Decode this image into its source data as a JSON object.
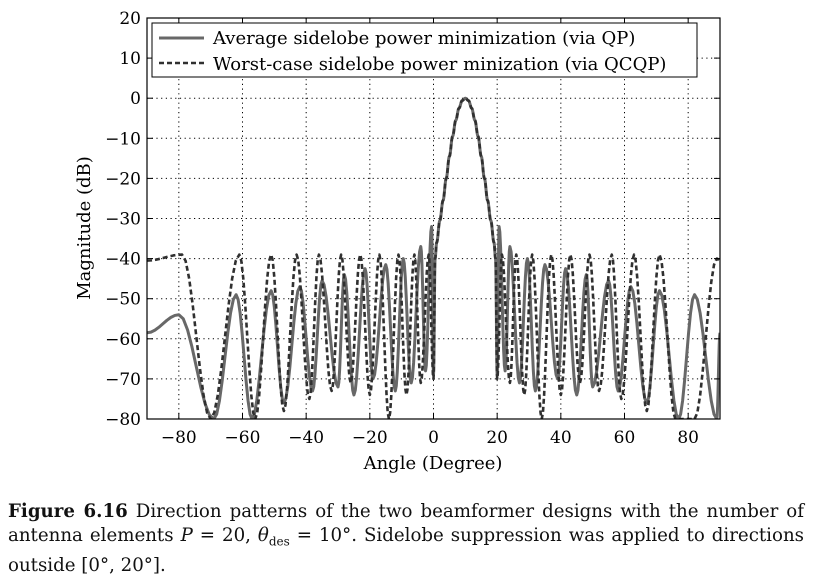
{
  "chart_data": {
    "type": "line",
    "title": "",
    "xlabel": "Angle (Degree)",
    "ylabel": "Magnitude (dB)",
    "xlim": [
      -90,
      90
    ],
    "ylim": [
      -80,
      20
    ],
    "xticks": [
      -80,
      -60,
      -40,
      -20,
      0,
      20,
      40,
      60,
      80
    ],
    "yticks": [
      20,
      10,
      0,
      -10,
      -20,
      -30,
      -40,
      -50,
      -60,
      -70,
      -80
    ],
    "xtick_labels": [
      "−80",
      "−60",
      "−40",
      "−20",
      "0",
      "20",
      "40",
      "60",
      "80"
    ],
    "ytick_labels": [
      "20",
      "10",
      "0",
      "−10",
      "−20",
      "−30",
      "−40",
      "−50",
      "−60",
      "−70",
      "−80"
    ],
    "grid": true,
    "legend_position": "top-right",
    "main_lobe": {
      "x": [
        0.5,
        1,
        2,
        3,
        4,
        5,
        6,
        7,
        8,
        9,
        10,
        11,
        12,
        13,
        14,
        15,
        16,
        17,
        18,
        19,
        19.5
      ],
      "y": [
        -40,
        -36,
        -30.5,
        -25.5,
        -20,
        -14.5,
        -9.5,
        -5.5,
        -2.5,
        -0.6,
        0,
        -0.6,
        -2.5,
        -5.5,
        -9.5,
        -14.5,
        -20,
        -25.5,
        -30.5,
        -36,
        -40
      ]
    },
    "series": [
      {
        "name": "Average sidelobe power minimization (via QP)",
        "color": "#686868",
        "dash": "solid",
        "y_at_minus90": -58.5,
        "y_at_plus90": -58.5,
        "sidelobes_left": [
          {
            "x": -80,
            "y": -54
          },
          {
            "x": -62,
            "y": -49
          },
          {
            "x": -51,
            "y": -48
          },
          {
            "x": -42,
            "y": -47
          },
          {
            "x": -35,
            "y": -45.5
          },
          {
            "x": -28,
            "y": -44
          },
          {
            "x": -21.5,
            "y": -42.5
          },
          {
            "x": -15,
            "y": -41.5
          },
          {
            "x": -9.5,
            "y": -40
          },
          {
            "x": -4,
            "y": -37
          },
          {
            "x": -0.6,
            "y": -32
          }
        ],
        "nulls_left": [
          {
            "x": -69,
            "y": -80
          },
          {
            "x": -57,
            "y": -80
          },
          {
            "x": -47,
            "y": -76
          },
          {
            "x": -38,
            "y": -73
          },
          {
            "x": -30,
            "y": -72
          },
          {
            "x": -25,
            "y": -74
          },
          {
            "x": -19,
            "y": -70
          },
          {
            "x": -12,
            "y": -73
          },
          {
            "x": -7,
            "y": -71
          },
          {
            "x": -2.5,
            "y": -68
          },
          {
            "x": 0,
            "y": -69
          }
        ],
        "sidelobes_right": [
          {
            "x": 20.6,
            "y": -32
          },
          {
            "x": 24,
            "y": -37
          },
          {
            "x": 29.5,
            "y": -40
          },
          {
            "x": 35,
            "y": -41.5
          },
          {
            "x": 41.5,
            "y": -42.5
          },
          {
            "x": 48,
            "y": -44
          },
          {
            "x": 55,
            "y": -45.5
          },
          {
            "x": 62,
            "y": -47
          },
          {
            "x": 71,
            "y": -48
          },
          {
            "x": 82,
            "y": -49
          }
        ],
        "nulls_right": [
          {
            "x": 20,
            "y": -69
          },
          {
            "x": 22.5,
            "y": -68
          },
          {
            "x": 27,
            "y": -71
          },
          {
            "x": 32,
            "y": -73
          },
          {
            "x": 39,
            "y": -70
          },
          {
            "x": 45,
            "y": -74
          },
          {
            "x": 50,
            "y": -72
          },
          {
            "x": 58,
            "y": -73
          },
          {
            "x": 67,
            "y": -76
          },
          {
            "x": 77,
            "y": -80
          },
          {
            "x": 89,
            "y": -80
          }
        ]
      },
      {
        "name": "Worst-case sidelobe power minization (via QCQP)",
        "color": "#303030",
        "dash": "dashed",
        "y_at_minus90": -40.5,
        "y_at_plus90": -40.5,
        "sidelobes_left": [
          {
            "x": -79,
            "y": -39
          },
          {
            "x": -61,
            "y": -39
          },
          {
            "x": -51,
            "y": -39
          },
          {
            "x": -43,
            "y": -39
          },
          {
            "x": -36,
            "y": -39
          },
          {
            "x": -29,
            "y": -39
          },
          {
            "x": -23,
            "y": -39
          },
          {
            "x": -17,
            "y": -39
          },
          {
            "x": -11,
            "y": -39
          },
          {
            "x": -6,
            "y": -39
          },
          {
            "x": -1.5,
            "y": -39
          }
        ],
        "nulls_left": [
          {
            "x": -70,
            "y": -80
          },
          {
            "x": -56,
            "y": -80
          },
          {
            "x": -47,
            "y": -78
          },
          {
            "x": -39,
            "y": -75
          },
          {
            "x": -32,
            "y": -73
          },
          {
            "x": -26,
            "y": -71
          },
          {
            "x": -20,
            "y": -74
          },
          {
            "x": -14,
            "y": -80
          },
          {
            "x": -8.5,
            "y": -74
          },
          {
            "x": -4,
            "y": -71
          },
          {
            "x": 0,
            "y": -70
          }
        ],
        "sidelobes_right": [
          {
            "x": 21.5,
            "y": -39
          },
          {
            "x": 26,
            "y": -39
          },
          {
            "x": 31,
            "y": -39
          },
          {
            "x": 37,
            "y": -39
          },
          {
            "x": 43,
            "y": -39
          },
          {
            "x": 49,
            "y": -39
          },
          {
            "x": 56,
            "y": -39
          },
          {
            "x": 63,
            "y": -39
          },
          {
            "x": 71,
            "y": -39
          },
          {
            "x": 89,
            "y": -40
          }
        ],
        "nulls_right": [
          {
            "x": 20,
            "y": -70
          },
          {
            "x": 24,
            "y": -71
          },
          {
            "x": 28.5,
            "y": -74
          },
          {
            "x": 34,
            "y": -80
          },
          {
            "x": 40,
            "y": -74
          },
          {
            "x": 46,
            "y": -71
          },
          {
            "x": 52,
            "y": -73
          },
          {
            "x": 59,
            "y": -75
          },
          {
            "x": 67,
            "y": -78
          },
          {
            "x": 76,
            "y": -80
          },
          {
            "x": 82,
            "y": -80
          }
        ]
      }
    ]
  },
  "caption": {
    "label": "Figure 6.16",
    "text_1": " Direction patterns of the two beamformer designs with the number of antenna elements ",
    "P": "P",
    "eq_P": " = 20, ",
    "theta": "θ",
    "theta_sub": "des",
    "eq_theta": " = 10°. Sidelobe suppression was applied to directions outside [0°, 20°]."
  }
}
